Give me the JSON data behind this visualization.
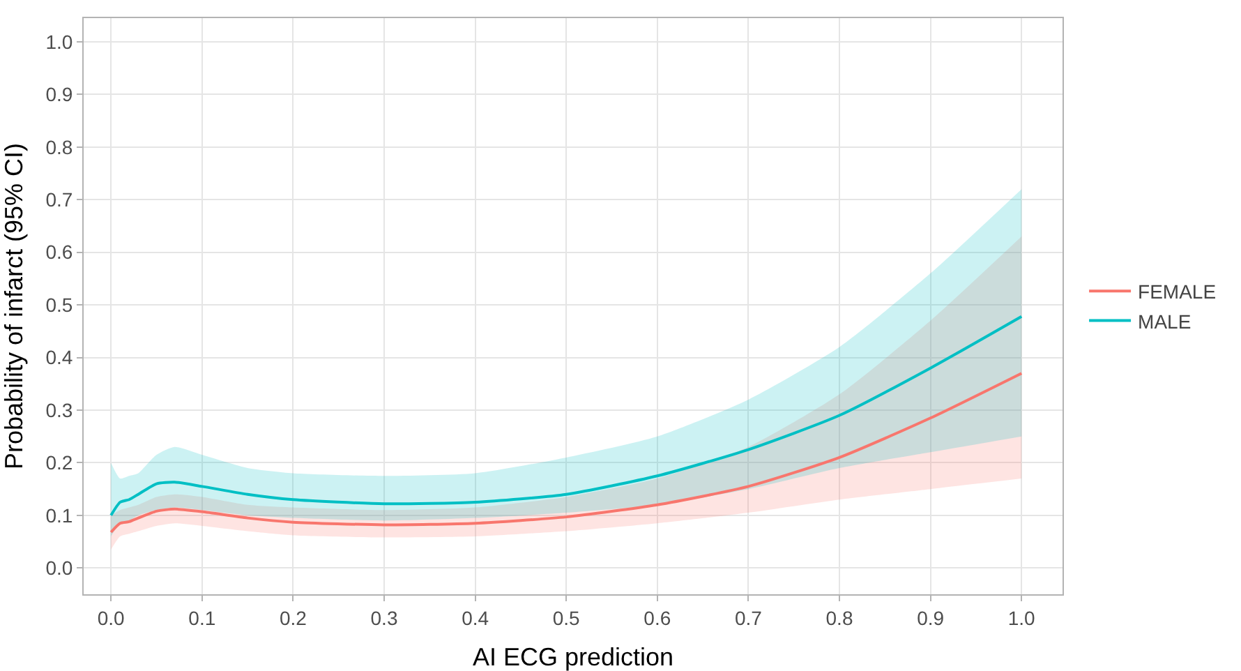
{
  "chart_data": {
    "type": "line",
    "xlabel": "AI ECG prediction",
    "ylabel": "Probability of infarct (95% CI)",
    "x": [
      0,
      0.01,
      0.02,
      0.03,
      0.05,
      0.07,
      0.1,
      0.15,
      0.2,
      0.3,
      0.4,
      0.5,
      0.6,
      0.7,
      0.8,
      0.9,
      1.0
    ],
    "series": [
      {
        "name": "FEMALE",
        "color": "#f8766d",
        "values": [
          0.068,
          0.085,
          0.088,
          0.095,
          0.108,
          0.112,
          0.107,
          0.095,
          0.087,
          0.082,
          0.085,
          0.097,
          0.12,
          0.155,
          0.21,
          0.285,
          0.37
        ],
        "lower": [
          0.035,
          0.06,
          0.065,
          0.07,
          0.08,
          0.085,
          0.08,
          0.07,
          0.062,
          0.058,
          0.06,
          0.07,
          0.085,
          0.105,
          0.13,
          0.15,
          0.17
        ],
        "upper": [
          0.1,
          0.11,
          0.115,
          0.12,
          0.135,
          0.14,
          0.135,
          0.12,
          0.115,
          0.11,
          0.115,
          0.135,
          0.17,
          0.23,
          0.33,
          0.47,
          0.63
        ]
      },
      {
        "name": "MALE",
        "color": "#00bfc4",
        "values": [
          0.1,
          0.125,
          0.13,
          0.14,
          0.16,
          0.163,
          0.155,
          0.14,
          0.13,
          0.122,
          0.125,
          0.14,
          0.175,
          0.225,
          0.29,
          0.38,
          0.478
        ],
        "lower": [
          0.06,
          0.085,
          0.09,
          0.1,
          0.11,
          0.115,
          0.11,
          0.1,
          0.095,
          0.09,
          0.095,
          0.105,
          0.12,
          0.15,
          0.19,
          0.22,
          0.25
        ],
        "upper": [
          0.2,
          0.17,
          0.175,
          0.18,
          0.215,
          0.23,
          0.215,
          0.19,
          0.18,
          0.175,
          0.18,
          0.21,
          0.25,
          0.32,
          0.42,
          0.56,
          0.72
        ]
      }
    ],
    "xlim": [
      -0.03,
      1.045
    ],
    "ylim": [
      -0.05,
      1.045
    ],
    "xticks": [
      {
        "value": 0,
        "label": "0.0"
      },
      0.1,
      0.2,
      0.3,
      0.4,
      0.5,
      0.6,
      0.7,
      0.8,
      0.9,
      {
        "value": 1,
        "label": "1.0"
      }
    ],
    "yticks": [
      {
        "value": 0,
        "label": "0.0"
      },
      0.1,
      0.2,
      0.3,
      0.4,
      0.5,
      0.6,
      0.7,
      0.8,
      0.9,
      {
        "value": 1,
        "label": "1.0"
      }
    ],
    "grid": true,
    "legend": "right",
    "marker": "none",
    "line_style": "solid"
  }
}
